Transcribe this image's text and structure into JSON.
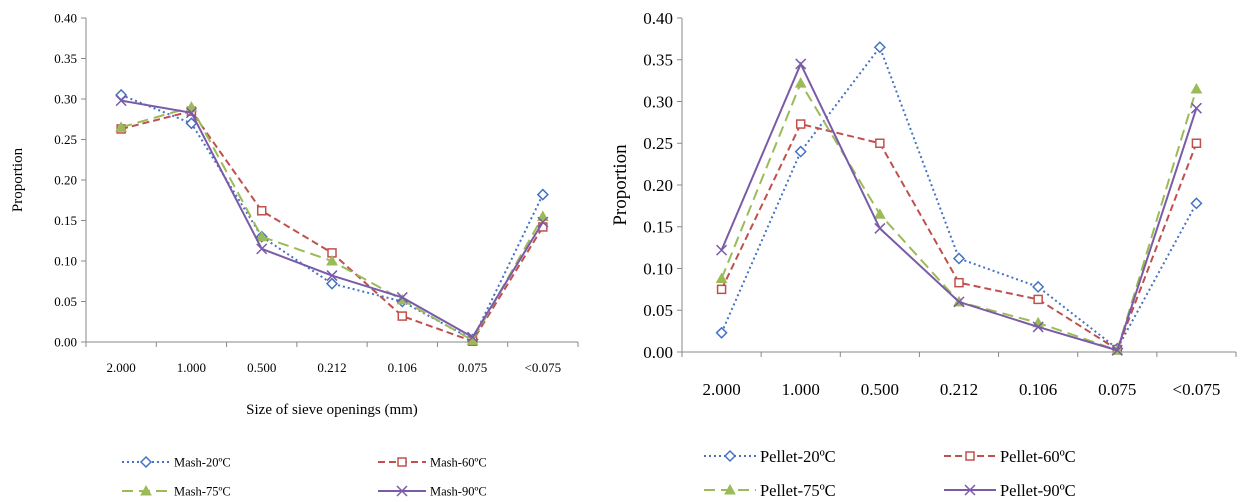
{
  "chart_data": [
    {
      "type": "line",
      "title": "",
      "xlabel": "Size of sieve openings (mm)",
      "ylabel": "Proportion",
      "categories": [
        "2.000",
        "1.000",
        "0.500",
        "0.212",
        "0.106",
        "0.075",
        "<0.075"
      ],
      "ylim": [
        0,
        0.4
      ],
      "yticks": [
        "0.00",
        "0.05",
        "0.10",
        "0.15",
        "0.20",
        "0.25",
        "0.30",
        "0.35",
        "0.40"
      ],
      "grid": false,
      "legend_position": "bottom",
      "series": [
        {
          "name": "Mash-20ºC",
          "color": "#4472C4",
          "dash": "dotted",
          "marker": "diamond",
          "values": [
            0.305,
            0.27,
            0.13,
            0.072,
            0.05,
            0.003,
            0.182
          ]
        },
        {
          "name": "Mash-60ºC",
          "color": "#C0504D",
          "dash": "dashed",
          "marker": "square",
          "values": [
            0.263,
            0.285,
            0.162,
            0.11,
            0.032,
            0.001,
            0.142
          ]
        },
        {
          "name": "Mash-75ºC",
          "color": "#9BBB59",
          "dash": "longdash",
          "marker": "triangle",
          "values": [
            0.265,
            0.29,
            0.13,
            0.1,
            0.052,
            0.002,
            0.155
          ]
        },
        {
          "name": "Mash-90ºC",
          "color": "#7A5BA8",
          "dash": "solid",
          "marker": "x",
          "values": [
            0.298,
            0.283,
            0.115,
            0.082,
            0.055,
            0.006,
            0.148
          ]
        }
      ]
    },
    {
      "type": "line",
      "title": "",
      "xlabel": "",
      "ylabel": "Proportion",
      "categories": [
        "2.000",
        "1.000",
        "0.500",
        "0.212",
        "0.106",
        "0.075",
        "<0.075"
      ],
      "ylim": [
        0,
        0.4
      ],
      "yticks": [
        "0.00",
        "0.05",
        "0.10",
        "0.15",
        "0.20",
        "0.25",
        "0.30",
        "0.35",
        "0.40"
      ],
      "grid": false,
      "legend_position": "bottom",
      "series": [
        {
          "name": "Pellet-20ºC",
          "color": "#4472C4",
          "dash": "dotted",
          "marker": "diamond",
          "values": [
            0.023,
            0.24,
            0.365,
            0.112,
            0.078,
            0.004,
            0.178
          ]
        },
        {
          "name": "Pellet-60ºC",
          "color": "#C0504D",
          "dash": "dashed",
          "marker": "square",
          "values": [
            0.075,
            0.273,
            0.25,
            0.083,
            0.063,
            0.003,
            0.25
          ]
        },
        {
          "name": "Pellet-75ºC",
          "color": "#9BBB59",
          "dash": "longdash",
          "marker": "triangle",
          "values": [
            0.088,
            0.322,
            0.165,
            0.06,
            0.035,
            0.002,
            0.315
          ]
        },
        {
          "name": "Pellet-90ºC",
          "color": "#7A5BA8",
          "dash": "solid",
          "marker": "x",
          "values": [
            0.122,
            0.345,
            0.148,
            0.06,
            0.03,
            0.002,
            0.292
          ]
        }
      ]
    }
  ]
}
